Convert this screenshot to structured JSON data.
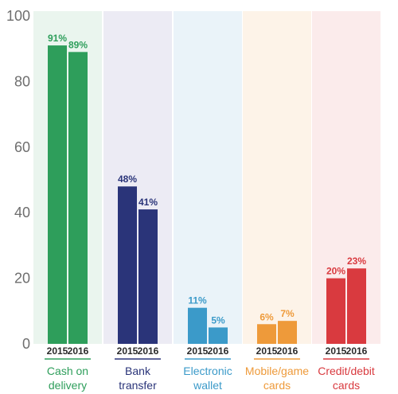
{
  "chart_data": {
    "type": "bar",
    "title": "",
    "xlabel": "",
    "ylabel": "",
    "ylim": [
      0,
      100
    ],
    "yticks": [
      0,
      20,
      40,
      60,
      80,
      100
    ],
    "grid": false,
    "legend": "none",
    "year_labels": [
      "2015",
      "2016"
    ],
    "categories": [
      {
        "label_lines": [
          "Cash on",
          "delivery"
        ],
        "values": [
          91,
          89
        ],
        "value_labels": [
          "91%",
          "89%"
        ],
        "color": "#2e9e5b",
        "band_color": "#eaf5ee"
      },
      {
        "label_lines": [
          "Bank",
          "transfer"
        ],
        "values": [
          48,
          41
        ],
        "value_labels": [
          "48%",
          "41%"
        ],
        "color": "#2a3479",
        "band_color": "#ecebf4"
      },
      {
        "label_lines": [
          "Electronic",
          "wallet"
        ],
        "values": [
          11,
          5
        ],
        "value_labels": [
          "11%",
          "5%"
        ],
        "color": "#3b9ac9",
        "band_color": "#eaf3f9"
      },
      {
        "label_lines": [
          "Mobile/game",
          "cards"
        ],
        "values": [
          6,
          7
        ],
        "value_labels": [
          "6%",
          "7%"
        ],
        "color": "#ee9a3a",
        "band_color": "#fdf3e8"
      },
      {
        "label_lines": [
          "Credit/debit",
          "cards"
        ],
        "values": [
          20,
          23
        ],
        "value_labels": [
          "20%",
          "23%"
        ],
        "color": "#d93a3f",
        "band_color": "#fbebeb"
      }
    ]
  }
}
